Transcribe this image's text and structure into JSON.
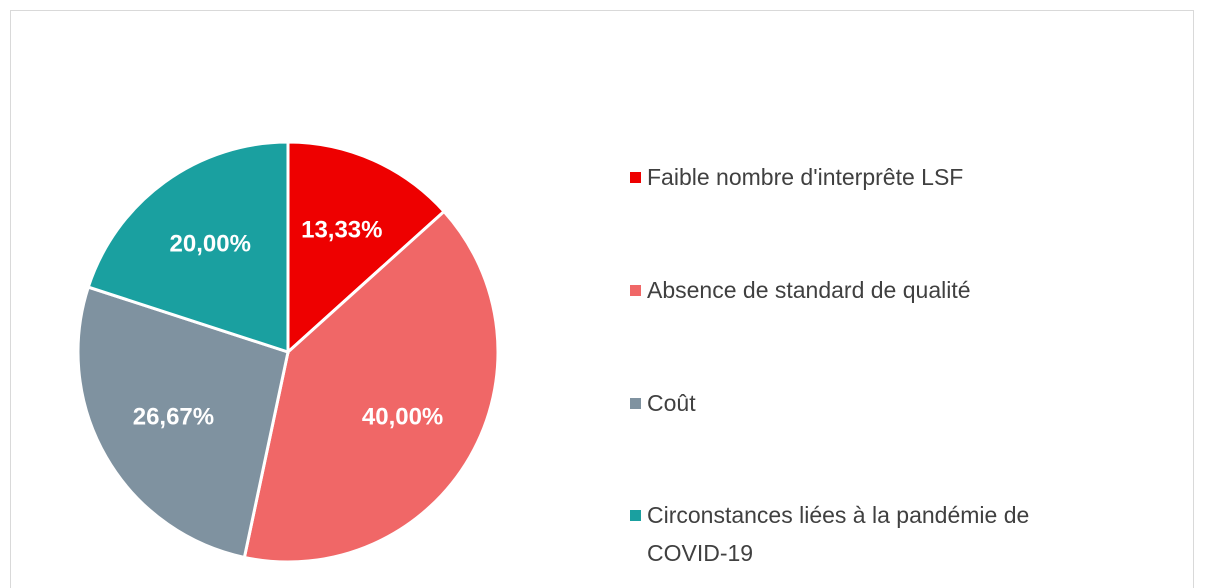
{
  "chart_data": {
    "type": "pie",
    "categories": [
      "Faible nombre d'interprête LSF",
      "Absence de standard de qualité",
      "Coût",
      "Circonstances liées à la pandémie de COVID-19"
    ],
    "values": [
      13.33,
      40,
      26.67,
      20
    ],
    "value_labels": [
      "13,33%",
      "40,00%",
      "26,67%",
      "20,00%"
    ],
    "colors": [
      "#ee0000",
      "#f06767",
      "#7f92a0",
      "#1aa0a0"
    ],
    "legend": "right"
  }
}
